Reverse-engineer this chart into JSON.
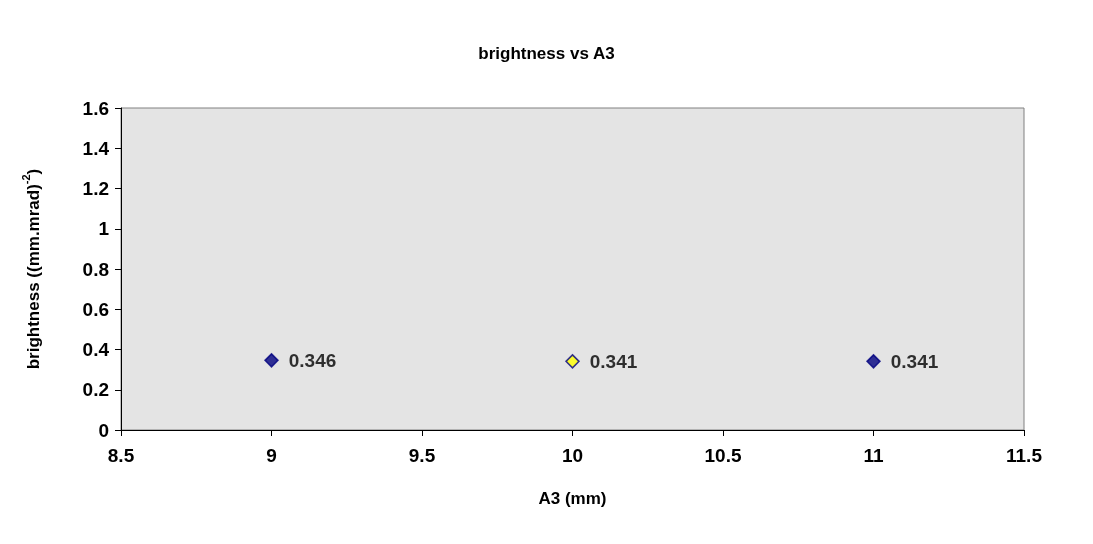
{
  "chart_data": {
    "type": "scatter",
    "title": "brightness vs A3",
    "xlabel": "A3 (mm)",
    "ylabel": "brightness ((mm.mrad)$^{-2}$)",
    "x": [
      9,
      10,
      11
    ],
    "values": [
      0.346,
      0.341,
      0.341
    ],
    "colors": [
      "#000080",
      "#ffff00",
      "#000080"
    ],
    "marker": "diamond",
    "data_labels": true,
    "grid": false,
    "xlim": [
      8.5,
      11.5
    ],
    "xticks": [
      8.5,
      9,
      9.5,
      10,
      10.5,
      11,
      11.5
    ],
    "ylim": [
      0,
      1.6
    ],
    "yticks": [
      0,
      0.2,
      0.4,
      0.6,
      0.8,
      1,
      1.2,
      1.4,
      1.6
    ]
  }
}
